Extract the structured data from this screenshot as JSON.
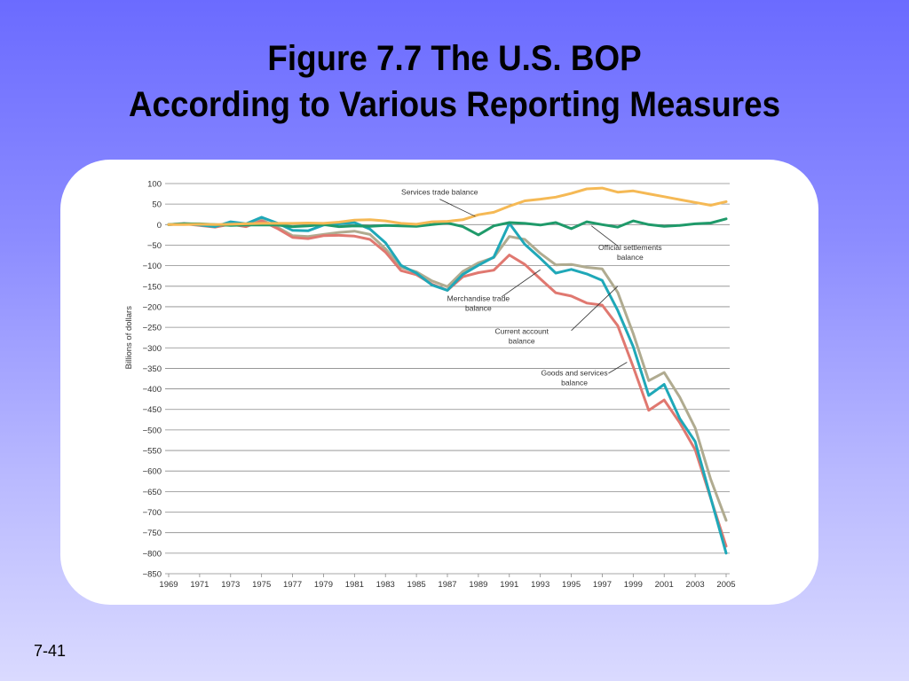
{
  "slide": {
    "title_line1": "Figure 7.7 The U.S. BOP",
    "title_line2": "According to Various Reporting Measures",
    "page_number": "7-41"
  },
  "chart_data": {
    "type": "line",
    "ylabel": "Billions of dollars",
    "xlabel": "",
    "ylim": [
      -850,
      100
    ],
    "xlim": [
      1969,
      2005
    ],
    "y_ticks": [
      100,
      50,
      0,
      -50,
      -100,
      -150,
      -200,
      -250,
      -300,
      -350,
      -400,
      -450,
      -500,
      -550,
      -600,
      -650,
      -700,
      -750,
      -800,
      -850
    ],
    "y_tick_labels": [
      "100",
      "50",
      "0",
      "−50",
      "−100",
      "−150",
      "−200",
      "−250",
      "−300",
      "−350",
      "−400",
      "−450",
      "−500",
      "−550",
      "−600",
      "−650",
      "−700",
      "−750",
      "−800",
      "−850"
    ],
    "x_ticks": [
      1969,
      1971,
      1973,
      1975,
      1977,
      1979,
      1981,
      1983,
      1985,
      1987,
      1989,
      1991,
      1993,
      1995,
      1997,
      1999,
      2001,
      2003,
      2005
    ],
    "grid": "horizontal",
    "x": [
      1969,
      1970,
      1971,
      1972,
      1973,
      1974,
      1975,
      1976,
      1977,
      1978,
      1979,
      1980,
      1981,
      1982,
      1983,
      1984,
      1985,
      1986,
      1987,
      1988,
      1989,
      1990,
      1991,
      1992,
      1993,
      1994,
      1995,
      1996,
      1997,
      1998,
      1999,
      2000,
      2001,
      2002,
      2003,
      2004,
      2005
    ],
    "series": [
      {
        "id": "services",
        "color": "#f5b955",
        "values": [
          0,
          0,
          1,
          0,
          1,
          2,
          3,
          3,
          3,
          4,
          3,
          6,
          11,
          12,
          9,
          3,
          1,
          7,
          8,
          12,
          24,
          30,
          45,
          58,
          62,
          67,
          76,
          87,
          89,
          79,
          82,
          75,
          68,
          61,
          54,
          47,
          56
        ]
      },
      {
        "id": "official-settlements",
        "color": "#1f9a6a",
        "values": [
          0,
          2,
          2,
          0,
          -2,
          -1,
          -1,
          -1,
          -5,
          -3,
          0,
          -5,
          -3,
          -4,
          -2,
          -3,
          -4,
          0,
          4,
          -5,
          -25,
          -3,
          5,
          3,
          -1,
          5,
          -10,
          7,
          0,
          -6,
          9,
          0,
          -4,
          -2,
          2,
          4,
          14
        ]
      },
      {
        "id": "current-account",
        "color": "#1fa8b8",
        "values": [
          0,
          2,
          -1,
          -5,
          7,
          2,
          18,
          4,
          -14,
          -15,
          -1,
          2,
          5,
          -11,
          -44,
          -99,
          -118,
          -147,
          -160,
          -121,
          -99,
          -79,
          3,
          -48,
          -82,
          -118,
          -109,
          -120,
          -136,
          -209,
          -297,
          -416,
          -389,
          -472,
          -528,
          -665,
          -800
        ]
      },
      {
        "id": "merchandise",
        "color": "#e07870",
        "values": [
          0,
          2,
          -2,
          -6,
          1,
          -5,
          9,
          -9,
          -31,
          -34,
          -27,
          -26,
          -28,
          -36,
          -67,
          -112,
          -122,
          -145,
          -160,
          -127,
          -117,
          -111,
          -74,
          -97,
          -132,
          -166,
          -174,
          -191,
          -196,
          -246,
          -346,
          -452,
          -427,
          -482,
          -548,
          -666,
          -783
        ]
      },
      {
        "id": "goods-services",
        "color": "#b0ab90",
        "values": [
          0,
          3,
          0,
          -3,
          2,
          -2,
          12,
          -6,
          -27,
          -29,
          -24,
          -19,
          -16,
          -24,
          -59,
          -104,
          -115,
          -137,
          -151,
          -114,
          -93,
          -80,
          -29,
          -36,
          -70,
          -98,
          -97,
          -104,
          -108,
          -165,
          -265,
          -380,
          -360,
          -420,
          -495,
          -620,
          -720
        ]
      }
    ],
    "annotations": [
      {
        "id": "services",
        "lines": [
          "Services trade balance"
        ]
      },
      {
        "id": "official-settlements",
        "lines": [
          "Official settlements",
          "balance"
        ]
      },
      {
        "id": "merchandise",
        "lines": [
          "Merchandise trade",
          "balance"
        ]
      },
      {
        "id": "current-account",
        "lines": [
          "Current account",
          "balance"
        ]
      },
      {
        "id": "goods-services",
        "lines": [
          "Goods and services",
          "balance"
        ]
      }
    ]
  }
}
